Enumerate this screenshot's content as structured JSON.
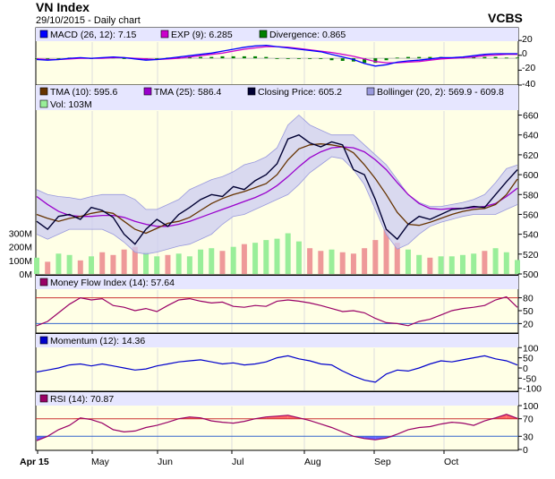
{
  "header": {
    "title": "VN Index",
    "subtitle": "29/10/2015 - Daily chart",
    "brand": "VCBS"
  },
  "colors": {
    "panel_bg": "#ffffe6",
    "band_fill": "#ccccf2",
    "band_line": "#9999dd",
    "legend_bg": "#e6e6ff",
    "closing": "#000033",
    "tma10": "#663300",
    "tma25": "#9900cc",
    "macd": "#0000ff",
    "exp": "#cc00cc",
    "divergence": "#008000",
    "vol_up": "#99ee99",
    "vol_down": "#ee9999",
    "mfi": "#990066",
    "momentum": "#0000cc",
    "rsi": "#990066",
    "ref_red": "#cc3333",
    "ref_blue": "#3366cc",
    "rsi_over": "#ff6666",
    "rsi_under": "#6666ff"
  },
  "panels": {
    "macd": {
      "legend": [
        "MACD (26, 12): 7.15",
        "EXP (9): 6.285",
        "Divergence: 0.865"
      ],
      "ticks": [
        "20",
        "0",
        "-20",
        "-40"
      ]
    },
    "price": {
      "legend": [
        "TMA (10): 595.6",
        "TMA (25): 586.4",
        "Closing Price: 605.2",
        "Bollinger (20, 2): 569.9 - 609.8"
      ],
      "vol_legend": "Vol: 103M",
      "ticks": [
        "660",
        "640",
        "620",
        "600",
        "580",
        "560",
        "540",
        "520",
        "500"
      ],
      "vol_ticks": [
        "300M",
        "200M",
        "100M",
        "0M"
      ]
    },
    "mfi": {
      "legend": "Money Flow Index (14): 57.64",
      "ticks": [
        "80",
        "50",
        "20"
      ]
    },
    "momentum": {
      "legend": "Momentum (12): 14.36",
      "ticks": [
        "100",
        "50",
        "0",
        "-50",
        "-100"
      ]
    },
    "rsi": {
      "legend": "RSI (14): 70.87",
      "ticks": [
        "100",
        "70",
        "30",
        "0"
      ]
    }
  },
  "x_axis": {
    "labels": [
      "Apr 15",
      "May",
      "Jun",
      "Jul",
      "Aug",
      "Sep",
      "Oct"
    ]
  },
  "chart_data": [
    {
      "type": "line",
      "name": "MACD",
      "ylim": [
        -40,
        25
      ],
      "series": [
        {
          "name": "MACD (26, 12)",
          "values": [
            -2,
            -3,
            -2,
            0,
            1,
            0,
            1,
            2,
            1,
            -1,
            -3,
            -2,
            0,
            2,
            4,
            6,
            8,
            11,
            14,
            17,
            19,
            20,
            18,
            16,
            14,
            12,
            10,
            6,
            2,
            -2,
            -8,
            -12,
            -10,
            -6,
            -4,
            -3,
            -1,
            1,
            1,
            2,
            4,
            6,
            7,
            7,
            7
          ]
        },
        {
          "name": "EXP (9)",
          "values": [
            -1,
            -2,
            -2,
            -1,
            0,
            0,
            0,
            1,
            1,
            0,
            -1,
            -2,
            -1,
            0,
            2,
            4,
            6,
            8,
            11,
            14,
            16,
            18,
            18,
            17,
            15,
            13,
            11,
            9,
            6,
            3,
            -1,
            -5,
            -7,
            -7,
            -6,
            -5,
            -3,
            -1,
            0,
            1,
            2,
            4,
            5,
            6,
            6
          ]
        },
        {
          "name": "Divergence",
          "values": [
            -1,
            -1,
            0,
            1,
            1,
            0,
            1,
            1,
            0,
            -1,
            -2,
            0,
            1,
            2,
            2,
            2,
            2,
            3,
            3,
            3,
            3,
            2,
            0,
            -1,
            -1,
            -1,
            -1,
            -3,
            -4,
            -5,
            -7,
            -7,
            -3,
            1,
            2,
            2,
            2,
            2,
            1,
            1,
            2,
            2,
            2,
            1,
            1
          ]
        }
      ]
    },
    {
      "type": "line",
      "name": "Price",
      "ylim": [
        500,
        665
      ],
      "series": [
        {
          "name": "Closing Price",
          "values": [
            553,
            545,
            558,
            560,
            555,
            567,
            564,
            557,
            540,
            530,
            545,
            555,
            548,
            560,
            567,
            575,
            580,
            578,
            588,
            585,
            594,
            600,
            611,
            636,
            640,
            632,
            628,
            633,
            630,
            605,
            600,
            575,
            545,
            535,
            550,
            558,
            555,
            560,
            565,
            566,
            568,
            567,
            580,
            593,
            605
          ]
        },
        {
          "name": "TMA (10)",
          "values": [
            560,
            556,
            553,
            556,
            558,
            561,
            563,
            561,
            553,
            545,
            541,
            546,
            551,
            553,
            557,
            564,
            571,
            576,
            580,
            583,
            587,
            591,
            600,
            615,
            626,
            630,
            631,
            630,
            628,
            622,
            610,
            596,
            580,
            562,
            550,
            549,
            552,
            556,
            560,
            563,
            565,
            566,
            570,
            580,
            595.6
          ]
        },
        {
          "name": "TMA (25)",
          "values": [
            578,
            570,
            563,
            559,
            558,
            558,
            559,
            559,
            557,
            553,
            550,
            548,
            548,
            550,
            553,
            557,
            561,
            565,
            569,
            573,
            577,
            582,
            589,
            598,
            608,
            617,
            623,
            627,
            628,
            627,
            623,
            615,
            605,
            592,
            580,
            571,
            566,
            565,
            566,
            566,
            567,
            568,
            571,
            578,
            586.4
          ]
        },
        {
          "name": "Bollinger Upper",
          "values": [
            585,
            580,
            578,
            577,
            575,
            578,
            580,
            580,
            580,
            575,
            565,
            565,
            570,
            575,
            585,
            590,
            595,
            598,
            603,
            610,
            613,
            618,
            627,
            650,
            660,
            650,
            645,
            640,
            640,
            640,
            630,
            620,
            610,
            595,
            580,
            572,
            568,
            568,
            570,
            572,
            575,
            580,
            592,
            606,
            609.8
          ]
        },
        {
          "name": "Bollinger Lower",
          "values": [
            540,
            535,
            540,
            545,
            545,
            545,
            545,
            540,
            532,
            522,
            520,
            522,
            525,
            528,
            530,
            535,
            540,
            550,
            558,
            560,
            565,
            570,
            575,
            580,
            590,
            602,
            610,
            618,
            616,
            605,
            590,
            565,
            540,
            525,
            530,
            540,
            548,
            552,
            555,
            558,
            560,
            560,
            560,
            565,
            569.9
          ]
        },
        {
          "name": "Vol",
          "values": [
            120,
            90,
            150,
            140,
            100,
            130,
            160,
            140,
            180,
            200,
            160,
            130,
            140,
            150,
            130,
            180,
            190,
            170,
            200,
            220,
            230,
            250,
            260,
            300,
            240,
            190,
            170,
            180,
            160,
            150,
            190,
            250,
            330,
            230,
            180,
            140,
            120,
            130,
            130,
            140,
            150,
            170,
            190,
            160,
            103
          ]
        }
      ]
    },
    {
      "type": "line",
      "name": "Money Flow Index (14)",
      "ylim": [
        0,
        100
      ],
      "series": [
        {
          "name": "MFI",
          "values": [
            15,
            25,
            45,
            65,
            80,
            75,
            78,
            62,
            58,
            50,
            55,
            48,
            62,
            75,
            78,
            72,
            68,
            70,
            60,
            58,
            62,
            60,
            72,
            75,
            72,
            68,
            62,
            55,
            48,
            50,
            45,
            32,
            22,
            20,
            15,
            25,
            30,
            40,
            50,
            55,
            58,
            62,
            75,
            82,
            57.64
          ]
        }
      ]
    },
    {
      "type": "line",
      "name": "Momentum (12)",
      "ylim": [
        -110,
        110
      ],
      "series": [
        {
          "name": "Momentum",
          "values": [
            -20,
            -10,
            0,
            15,
            20,
            10,
            20,
            10,
            0,
            -10,
            -5,
            10,
            20,
            30,
            35,
            40,
            30,
            20,
            25,
            15,
            20,
            30,
            50,
            60,
            45,
            35,
            20,
            15,
            -15,
            -40,
            -60,
            -70,
            -30,
            -10,
            -15,
            0,
            20,
            35,
            30,
            40,
            50,
            60,
            45,
            35,
            14.36
          ]
        }
      ]
    },
    {
      "type": "line",
      "name": "RSI (14)",
      "ylim": [
        0,
        100
      ],
      "series": [
        {
          "name": "RSI",
          "values": [
            20,
            30,
            45,
            55,
            72,
            68,
            60,
            45,
            40,
            42,
            50,
            55,
            62,
            70,
            74,
            72,
            65,
            62,
            60,
            64,
            70,
            74,
            76,
            78,
            72,
            66,
            58,
            50,
            40,
            30,
            25,
            22,
            26,
            35,
            45,
            50,
            52,
            58,
            62,
            60,
            55,
            65,
            72,
            80,
            70.87
          ]
        }
      ]
    }
  ]
}
